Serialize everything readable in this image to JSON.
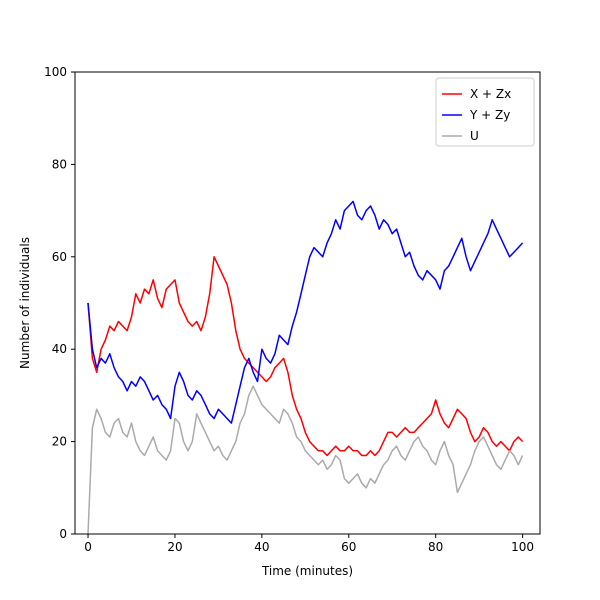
{
  "chart_data": {
    "type": "line",
    "title": "",
    "xlabel": "Time (minutes)",
    "ylabel": "Number of individuals",
    "xlim": [
      -3,
      104
    ],
    "ylim": [
      0,
      100
    ],
    "xticks": [
      0,
      20,
      40,
      60,
      80,
      100
    ],
    "yticks": [
      0,
      20,
      40,
      60,
      80,
      100
    ],
    "grid": false,
    "legend_position": "top-right",
    "series": [
      {
        "name": "X + Zx",
        "color": "#ff0000",
        "x": [
          0,
          1,
          2,
          3,
          4,
          5,
          6,
          7,
          8,
          9,
          10,
          11,
          12,
          13,
          14,
          15,
          16,
          17,
          18,
          19,
          20,
          21,
          22,
          23,
          24,
          25,
          26,
          27,
          28,
          29,
          30,
          31,
          32,
          33,
          34,
          35,
          36,
          37,
          38,
          39,
          40,
          41,
          42,
          43,
          44,
          45,
          46,
          47,
          48,
          49,
          50,
          51,
          52,
          53,
          54,
          55,
          56,
          57,
          58,
          59,
          60,
          61,
          62,
          63,
          64,
          65,
          66,
          67,
          68,
          69,
          70,
          71,
          72,
          73,
          74,
          75,
          76,
          77,
          78,
          79,
          80,
          81,
          82,
          83,
          84,
          85,
          86,
          87,
          88,
          89,
          90,
          91,
          92,
          93,
          94,
          95,
          96,
          97,
          98,
          99,
          100
        ],
        "y": [
          50,
          38,
          35,
          40,
          42,
          45,
          44,
          46,
          45,
          44,
          47,
          52,
          50,
          53,
          52,
          55,
          51,
          49,
          53,
          54,
          55,
          50,
          48,
          46,
          45,
          46,
          44,
          47,
          52,
          60,
          58,
          56,
          54,
          50,
          44,
          40,
          38,
          37,
          36,
          35,
          34,
          33,
          34,
          36,
          37,
          38,
          35,
          30,
          27,
          25,
          22,
          20,
          19,
          18,
          18,
          17,
          18,
          19,
          18,
          18,
          19,
          18,
          18,
          17,
          17,
          18,
          17,
          18,
          20,
          22,
          22,
          21,
          22,
          23,
          22,
          22,
          23,
          24,
          25,
          26,
          29,
          26,
          24,
          23,
          25,
          27,
          26,
          25,
          22,
          20,
          21,
          23,
          22,
          20,
          19,
          20,
          19,
          18,
          20,
          21,
          20
        ]
      },
      {
        "name": "Y + Zy",
        "color": "#0000ff",
        "x": [
          0,
          1,
          2,
          3,
          4,
          5,
          6,
          7,
          8,
          9,
          10,
          11,
          12,
          13,
          14,
          15,
          16,
          17,
          18,
          19,
          20,
          21,
          22,
          23,
          24,
          25,
          26,
          27,
          28,
          29,
          30,
          31,
          32,
          33,
          34,
          35,
          36,
          37,
          38,
          39,
          40,
          41,
          42,
          43,
          44,
          45,
          46,
          47,
          48,
          49,
          50,
          51,
          52,
          53,
          54,
          55,
          56,
          57,
          58,
          59,
          60,
          61,
          62,
          63,
          64,
          65,
          66,
          67,
          68,
          69,
          70,
          71,
          72,
          73,
          74,
          75,
          76,
          77,
          78,
          79,
          80,
          81,
          82,
          83,
          84,
          85,
          86,
          87,
          88,
          89,
          90,
          91,
          92,
          93,
          94,
          95,
          96,
          97,
          98,
          99,
          100
        ],
        "y": [
          50,
          40,
          36,
          38,
          37,
          39,
          36,
          34,
          33,
          31,
          33,
          32,
          34,
          33,
          31,
          29,
          30,
          28,
          27,
          25,
          32,
          35,
          33,
          30,
          29,
          31,
          30,
          28,
          26,
          25,
          27,
          26,
          25,
          24,
          28,
          32,
          36,
          38,
          35,
          33,
          40,
          38,
          37,
          39,
          43,
          42,
          41,
          45,
          48,
          52,
          56,
          60,
          62,
          61,
          60,
          63,
          65,
          68,
          66,
          70,
          71,
          72,
          69,
          68,
          70,
          71,
          69,
          66,
          68,
          67,
          65,
          66,
          63,
          60,
          61,
          58,
          56,
          55,
          57,
          56,
          55,
          53,
          57,
          58,
          60,
          62,
          64,
          60,
          57,
          59,
          61,
          63,
          65,
          68,
          66,
          64,
          62,
          60,
          61,
          62,
          63
        ]
      },
      {
        "name": "U",
        "color": "#aaaaaa",
        "x": [
          0,
          1,
          2,
          3,
          4,
          5,
          6,
          7,
          8,
          9,
          10,
          11,
          12,
          13,
          14,
          15,
          16,
          17,
          18,
          19,
          20,
          21,
          22,
          23,
          24,
          25,
          26,
          27,
          28,
          29,
          30,
          31,
          32,
          33,
          34,
          35,
          36,
          37,
          38,
          39,
          40,
          41,
          42,
          43,
          44,
          45,
          46,
          47,
          48,
          49,
          50,
          51,
          52,
          53,
          54,
          55,
          56,
          57,
          58,
          59,
          60,
          61,
          62,
          63,
          64,
          65,
          66,
          67,
          68,
          69,
          70,
          71,
          72,
          73,
          74,
          75,
          76,
          77,
          78,
          79,
          80,
          81,
          82,
          83,
          84,
          85,
          86,
          87,
          88,
          89,
          90,
          91,
          92,
          93,
          94,
          95,
          96,
          97,
          98,
          99,
          100
        ],
        "y": [
          0,
          23,
          27,
          25,
          22,
          21,
          24,
          25,
          22,
          21,
          24,
          20,
          18,
          17,
          19,
          21,
          18,
          17,
          16,
          18,
          25,
          24,
          20,
          18,
          20,
          26,
          24,
          22,
          20,
          18,
          19,
          17,
          16,
          18,
          20,
          24,
          26,
          30,
          32,
          30,
          28,
          27,
          26,
          25,
          24,
          27,
          26,
          24,
          21,
          20,
          18,
          17,
          16,
          15,
          16,
          14,
          15,
          17,
          16,
          12,
          11,
          12,
          13,
          11,
          10,
          12,
          11,
          13,
          15,
          16,
          18,
          19,
          17,
          16,
          18,
          20,
          21,
          19,
          18,
          16,
          15,
          18,
          20,
          17,
          15,
          9,
          11,
          13,
          15,
          18,
          20,
          21,
          19,
          17,
          15,
          14,
          16,
          18,
          17,
          15,
          17
        ]
      }
    ]
  }
}
